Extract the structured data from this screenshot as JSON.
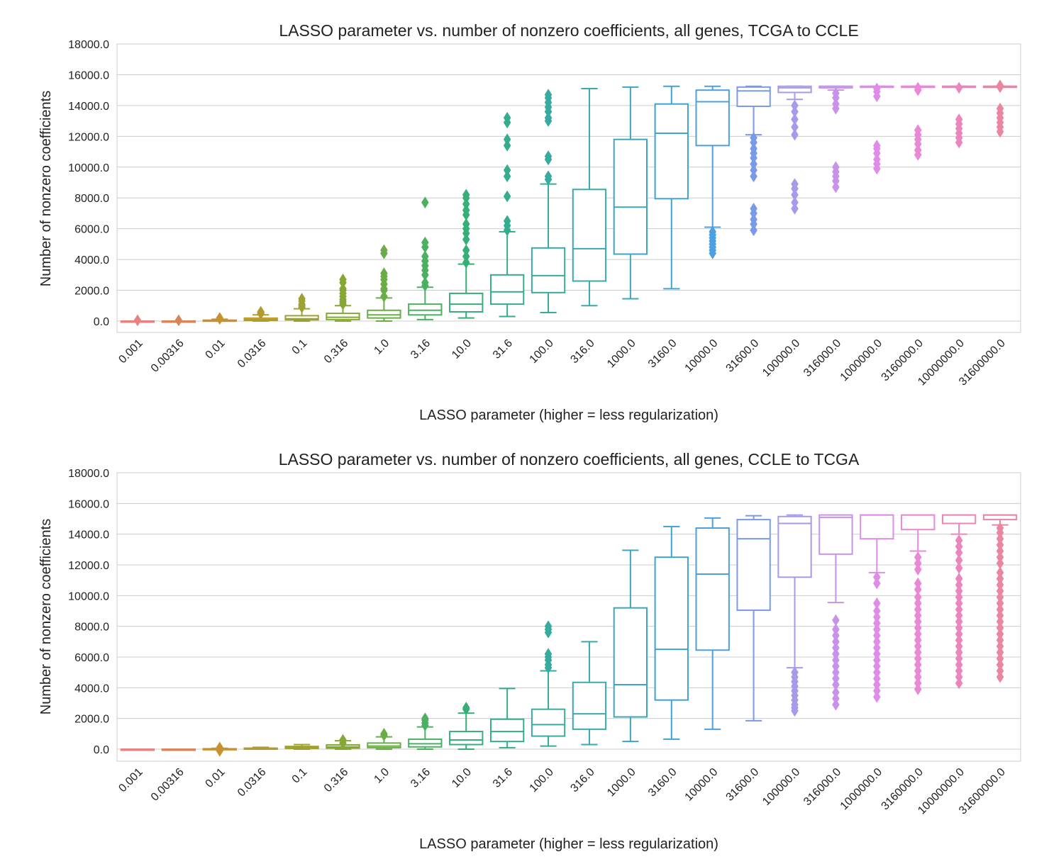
{
  "chart_data": [
    {
      "type": "box",
      "title": "LASSO parameter vs. number of nonzero coefficients, all genes, TCGA to CCLE",
      "xlabel": "LASSO parameter (higher = less regularization)",
      "ylabel": "Number of nonzero coefficients",
      "ylim": [
        -700,
        18000
      ],
      "yticks": [
        "0.0",
        "2000.0",
        "4000.0",
        "6000.0",
        "8000.0",
        "10000.0",
        "12000.0",
        "14000.0",
        "16000.0",
        "18000.0"
      ],
      "grid": "horizontal",
      "categories": [
        "0.001",
        "0.00316",
        "0.01",
        "0.0316",
        "0.1",
        "0.316",
        "1.0",
        "3.16",
        "10.0",
        "31.6",
        "100.0",
        "316.0",
        "1000.0",
        "3160.0",
        "10000.0",
        "31600.0",
        "100000.0",
        "316000.0",
        "1000000.0",
        "3160000.0",
        "10000000.0",
        "31600000.0"
      ],
      "colors": [
        "#e8817f",
        "#d9855a",
        "#c8912f",
        "#b39a2f",
        "#9ea232",
        "#84a832",
        "#6aad46",
        "#4bb062",
        "#35ae78",
        "#33ad8d",
        "#36ab9e",
        "#3aa9ad",
        "#3ca6bd",
        "#3ea3cf",
        "#4c9fe0",
        "#7a9ae8",
        "#a79aea",
        "#c793ea",
        "#df8ce8",
        "#ea88d6",
        "#ea86bc",
        "#ea85a2"
      ],
      "boxes": [
        {
          "category": "0.001",
          "whisker_low": 0,
          "q1": 0,
          "median": 0,
          "q3": 0,
          "whisker_high": 0,
          "outliers": [
            50
          ]
        },
        {
          "category": "0.00316",
          "whisker_low": 0,
          "q1": 0,
          "median": 0,
          "q3": 0,
          "whisker_high": 0,
          "outliers": [
            50
          ]
        },
        {
          "category": "0.01",
          "whisker_low": 0,
          "q1": 0,
          "median": 20,
          "q3": 60,
          "whisker_high": 120,
          "outliers": [
            150,
            200
          ]
        },
        {
          "category": "0.0316",
          "whisker_low": 0,
          "q1": 40,
          "median": 90,
          "q3": 190,
          "whisker_high": 400,
          "outliers": [
            480,
            550,
            600
          ]
        },
        {
          "category": "0.1",
          "whisker_low": 0,
          "q1": 80,
          "median": 150,
          "q3": 350,
          "whisker_high": 800,
          "outliers": [
            900,
            1000,
            1100,
            1300,
            1450
          ]
        },
        {
          "category": "0.316",
          "whisker_low": 0,
          "q1": 100,
          "median": 250,
          "q3": 500,
          "whisker_high": 1000,
          "outliers": [
            1100,
            1250,
            1400,
            1600,
            1800,
            2000,
            2100,
            2500,
            2700
          ]
        },
        {
          "category": "1.0",
          "whisker_low": 0,
          "q1": 200,
          "median": 400,
          "q3": 700,
          "whisker_high": 1500,
          "outliers": [
            1600,
            2000,
            2100,
            2400,
            2700,
            2900,
            3100,
            4400,
            4600
          ]
        },
        {
          "category": "3.16",
          "whisker_low": 100,
          "q1": 400,
          "median": 700,
          "q3": 1100,
          "whisker_high": 2200,
          "outliers": [
            2300,
            2500,
            3000,
            3300,
            3600,
            3900,
            4200,
            4800,
            5100,
            7700
          ]
        },
        {
          "category": "10.0",
          "whisker_low": 200,
          "q1": 600,
          "median": 1100,
          "q3": 1800,
          "whisker_high": 3700,
          "outliers": [
            3800,
            4200,
            4600,
            5300,
            5700,
            6000,
            6300,
            6900,
            7200,
            7600,
            8000,
            8200
          ]
        },
        {
          "category": "31.6",
          "whisker_low": 300,
          "q1": 1100,
          "median": 1900,
          "q3": 3000,
          "whisker_high": 5800,
          "outliers": [
            5900,
            6200,
            6500,
            8100,
            9400,
            9800,
            11400,
            11800,
            12900,
            13200
          ]
        },
        {
          "category": "100.0",
          "whisker_low": 550,
          "q1": 1850,
          "median": 2950,
          "q3": 4750,
          "whisker_high": 8900,
          "outliers": [
            9200,
            9400,
            10500,
            10700,
            13000,
            13200,
            13600,
            13900,
            14200,
            14500,
            14700
          ]
        },
        {
          "category": "316.0",
          "whisker_low": 1000,
          "q1": 2600,
          "median": 4700,
          "q3": 8550,
          "whisker_high": 15100,
          "outliers": []
        },
        {
          "category": "1000.0",
          "whisker_low": 1450,
          "q1": 4350,
          "median": 7400,
          "q3": 11800,
          "whisker_high": 15200,
          "outliers": []
        },
        {
          "category": "3160.0",
          "whisker_low": 2100,
          "q1": 7950,
          "median": 12200,
          "q3": 14100,
          "whisker_high": 15250,
          "outliers": []
        },
        {
          "category": "10000.0",
          "whisker_low": 6100,
          "q1": 11400,
          "median": 14250,
          "q3": 15000,
          "whisker_high": 15250,
          "outliers": [
            4400,
            4600,
            4800,
            5000,
            5200,
            5400,
            5600,
            5800
          ]
        },
        {
          "category": "31600.0",
          "whisker_low": 12100,
          "q1": 13950,
          "median": 14950,
          "q3": 15200,
          "whisker_high": 15250,
          "outliers": [
            5900,
            6300,
            6600,
            7000,
            7300,
            9400,
            9800,
            10200,
            10600,
            10900,
            11200,
            11600,
            11900
          ]
        },
        {
          "category": "100000.0",
          "whisker_low": 14400,
          "q1": 14850,
          "median": 15150,
          "q3": 15250,
          "whisker_high": 15250,
          "outliers": [
            7300,
            7700,
            8200,
            8600,
            8900,
            12100,
            12600,
            13100,
            13600,
            14000
          ]
        },
        {
          "category": "316000.0",
          "whisker_low": 15000,
          "q1": 15150,
          "median": 15250,
          "q3": 15250,
          "whisker_high": 15250,
          "outliers": [
            8700,
            9100,
            9400,
            9700,
            10000,
            13800,
            14100,
            14500,
            14800
          ]
        },
        {
          "category": "1000000.0",
          "whisker_low": 15200,
          "q1": 15250,
          "median": 15250,
          "q3": 15250,
          "whisker_high": 15250,
          "outliers": [
            9900,
            10200,
            10500,
            10900,
            11200,
            11400,
            14600,
            14900,
            15100
          ]
        },
        {
          "category": "3160000.0",
          "whisker_low": 15250,
          "q1": 15250,
          "median": 15250,
          "q3": 15250,
          "whisker_high": 15250,
          "outliers": [
            10800,
            11100,
            11500,
            11800,
            12100,
            12400,
            15000,
            15150
          ]
        },
        {
          "category": "10000000.0",
          "whisker_low": 15250,
          "q1": 15250,
          "median": 15250,
          "q3": 15250,
          "whisker_high": 15250,
          "outliers": [
            11600,
            11900,
            12200,
            12500,
            12800,
            13100,
            15150
          ]
        },
        {
          "category": "31600000.0",
          "whisker_low": 15250,
          "q1": 15250,
          "median": 15250,
          "q3": 15250,
          "whisker_high": 15250,
          "outliers": [
            12300,
            12600,
            12900,
            13200,
            13500,
            13800,
            15200,
            15300
          ]
        }
      ]
    },
    {
      "type": "box",
      "title": "LASSO parameter vs. number of nonzero coefficients, all genes, CCLE to TCGA",
      "xlabel": "LASSO parameter (higher = less regularization)",
      "ylabel": "Number of nonzero coefficients",
      "ylim": [
        -700,
        18000
      ],
      "yticks": [
        "0.0",
        "2000.0",
        "4000.0",
        "6000.0",
        "8000.0",
        "10000.0",
        "12000.0",
        "14000.0",
        "16000.0",
        "18000.0"
      ],
      "grid": "horizontal",
      "categories": [
        "0.001",
        "0.00316",
        "0.01",
        "0.0316",
        "0.1",
        "0.316",
        "1.0",
        "3.16",
        "10.0",
        "31.6",
        "100.0",
        "316.0",
        "1000.0",
        "3160.0",
        "10000.0",
        "31600.0",
        "100000.0",
        "316000.0",
        "1000000.0",
        "3160000.0",
        "10000000.0",
        "31600000.0"
      ],
      "colors": [
        "#e8817f",
        "#d9855a",
        "#c8912f",
        "#b39a2f",
        "#9ea232",
        "#84a832",
        "#6aad46",
        "#4bb062",
        "#35ae78",
        "#33ad8d",
        "#36ab9e",
        "#3aa9ad",
        "#3ca6bd",
        "#3ea3cf",
        "#4c9fe0",
        "#7a9ae8",
        "#a79aea",
        "#c793ea",
        "#df8ce8",
        "#ea88d6",
        "#ea86bc",
        "#ea85a2"
      ],
      "boxes": [
        {
          "category": "0.001",
          "whisker_low": 0,
          "q1": 0,
          "median": 0,
          "q3": 0,
          "whisker_high": 0,
          "outliers": []
        },
        {
          "category": "0.00316",
          "whisker_low": 0,
          "q1": 0,
          "median": 0,
          "q3": 0,
          "whisker_high": 0,
          "outliers": []
        },
        {
          "category": "0.01",
          "whisker_low": 0,
          "q1": 0,
          "median": 10,
          "q3": 30,
          "whisker_high": 60,
          "outliers": [
            -100,
            0,
            100
          ]
        },
        {
          "category": "0.0316",
          "whisker_low": 0,
          "q1": 20,
          "median": 40,
          "q3": 70,
          "whisker_high": 120,
          "outliers": []
        },
        {
          "category": "0.1",
          "whisker_low": 0,
          "q1": 50,
          "median": 100,
          "q3": 180,
          "whisker_high": 300,
          "outliers": []
        },
        {
          "category": "0.316",
          "whisker_low": 0,
          "q1": 70,
          "median": 150,
          "q3": 280,
          "whisker_high": 550,
          "outliers": [
            400,
            600
          ]
        },
        {
          "category": "1.0",
          "whisker_low": 0,
          "q1": 100,
          "median": 200,
          "q3": 400,
          "whisker_high": 800,
          "outliers": [
            900,
            1000
          ]
        },
        {
          "category": "3.16",
          "whisker_low": 0,
          "q1": 150,
          "median": 350,
          "q3": 650,
          "whisker_high": 1450,
          "outliers": [
            1550,
            1700,
            1900,
            2000
          ]
        },
        {
          "category": "10.0",
          "whisker_low": 0,
          "q1": 300,
          "median": 600,
          "q3": 1150,
          "whisker_high": 2350,
          "outliers": [
            2600,
            2700
          ]
        },
        {
          "category": "31.6",
          "whisker_low": 100,
          "q1": 500,
          "median": 1150,
          "q3": 1950,
          "whisker_high": 3950,
          "outliers": []
        },
        {
          "category": "100.0",
          "whisker_low": 200,
          "q1": 850,
          "median": 1600,
          "q3": 2600,
          "whisker_high": 5100,
          "outliers": [
            5300,
            5500,
            5800,
            6000,
            6200,
            7600,
            7800,
            8000
          ]
        },
        {
          "category": "316.0",
          "whisker_low": 300,
          "q1": 1300,
          "median": 2300,
          "q3": 4350,
          "whisker_high": 7000,
          "outliers": []
        },
        {
          "category": "1000.0",
          "whisker_low": 500,
          "q1": 2100,
          "median": 4200,
          "q3": 9200,
          "whisker_high": 12950,
          "outliers": []
        },
        {
          "category": "3160.0",
          "whisker_low": 650,
          "q1": 3200,
          "median": 6500,
          "q3": 12500,
          "whisker_high": 14500,
          "outliers": []
        },
        {
          "category": "10000.0",
          "whisker_low": 1300,
          "q1": 6450,
          "median": 11400,
          "q3": 14400,
          "whisker_high": 15050,
          "outliers": []
        },
        {
          "category": "31600.0",
          "whisker_low": 1850,
          "q1": 9050,
          "median": 13700,
          "q3": 14950,
          "whisker_high": 15200,
          "outliers": []
        },
        {
          "category": "100000.0",
          "whisker_low": 5300,
          "q1": 11200,
          "median": 14700,
          "q3": 15150,
          "whisker_high": 15250,
          "outliers": [
            2500,
            2700,
            2900,
            3200,
            3500,
            3800,
            4100,
            4400,
            4700,
            5000
          ]
        },
        {
          "category": "316000.0",
          "whisker_low": 9550,
          "q1": 12700,
          "median": 15100,
          "q3": 15250,
          "whisker_high": 15250,
          "outliers": [
            2900,
            3300,
            3700,
            4200,
            4600,
            5000,
            5400,
            5800,
            6200,
            6600,
            7000,
            7400,
            7800,
            8400
          ]
        },
        {
          "category": "1000000.0",
          "whisker_low": 11500,
          "q1": 13700,
          "median": 15250,
          "q3": 15250,
          "whisker_high": 15250,
          "outliers": [
            3400,
            3800,
            4200,
            4600,
            5000,
            5400,
            5800,
            6200,
            6600,
            7000,
            7400,
            7800,
            8200,
            8600,
            9000,
            9500,
            10800,
            11200
          ]
        },
        {
          "category": "3160000.0",
          "whisker_low": 12900,
          "q1": 14300,
          "median": 15250,
          "q3": 15250,
          "whisker_high": 15250,
          "outliers": [
            3900,
            4300,
            4700,
            5100,
            5500,
            5900,
            6300,
            6700,
            7100,
            7500,
            7900,
            8300,
            8700,
            9100,
            9500,
            9900,
            10400,
            10800,
            11700,
            12100,
            12500
          ]
        },
        {
          "category": "10000000.0",
          "whisker_low": 14000,
          "q1": 14700,
          "median": 15250,
          "q3": 15250,
          "whisker_high": 15250,
          "outliers": [
            4300,
            4700,
            5100,
            5500,
            5900,
            6300,
            6700,
            7100,
            7500,
            7900,
            8300,
            8700,
            9100,
            9500,
            9900,
            10300,
            10700,
            11100,
            11800,
            12300,
            12800,
            13200,
            13600
          ]
        },
        {
          "category": "31600000.0",
          "whisker_low": 14600,
          "q1": 14950,
          "median": 15250,
          "q3": 15250,
          "whisker_high": 15250,
          "outliers": [
            4700,
            5100,
            5500,
            5900,
            6300,
            6700,
            7100,
            7500,
            7900,
            8300,
            8700,
            9100,
            9500,
            9900,
            10300,
            10700,
            11100,
            11500,
            12100,
            12500,
            12900,
            13300,
            13700,
            14100,
            14400
          ]
        }
      ]
    }
  ]
}
